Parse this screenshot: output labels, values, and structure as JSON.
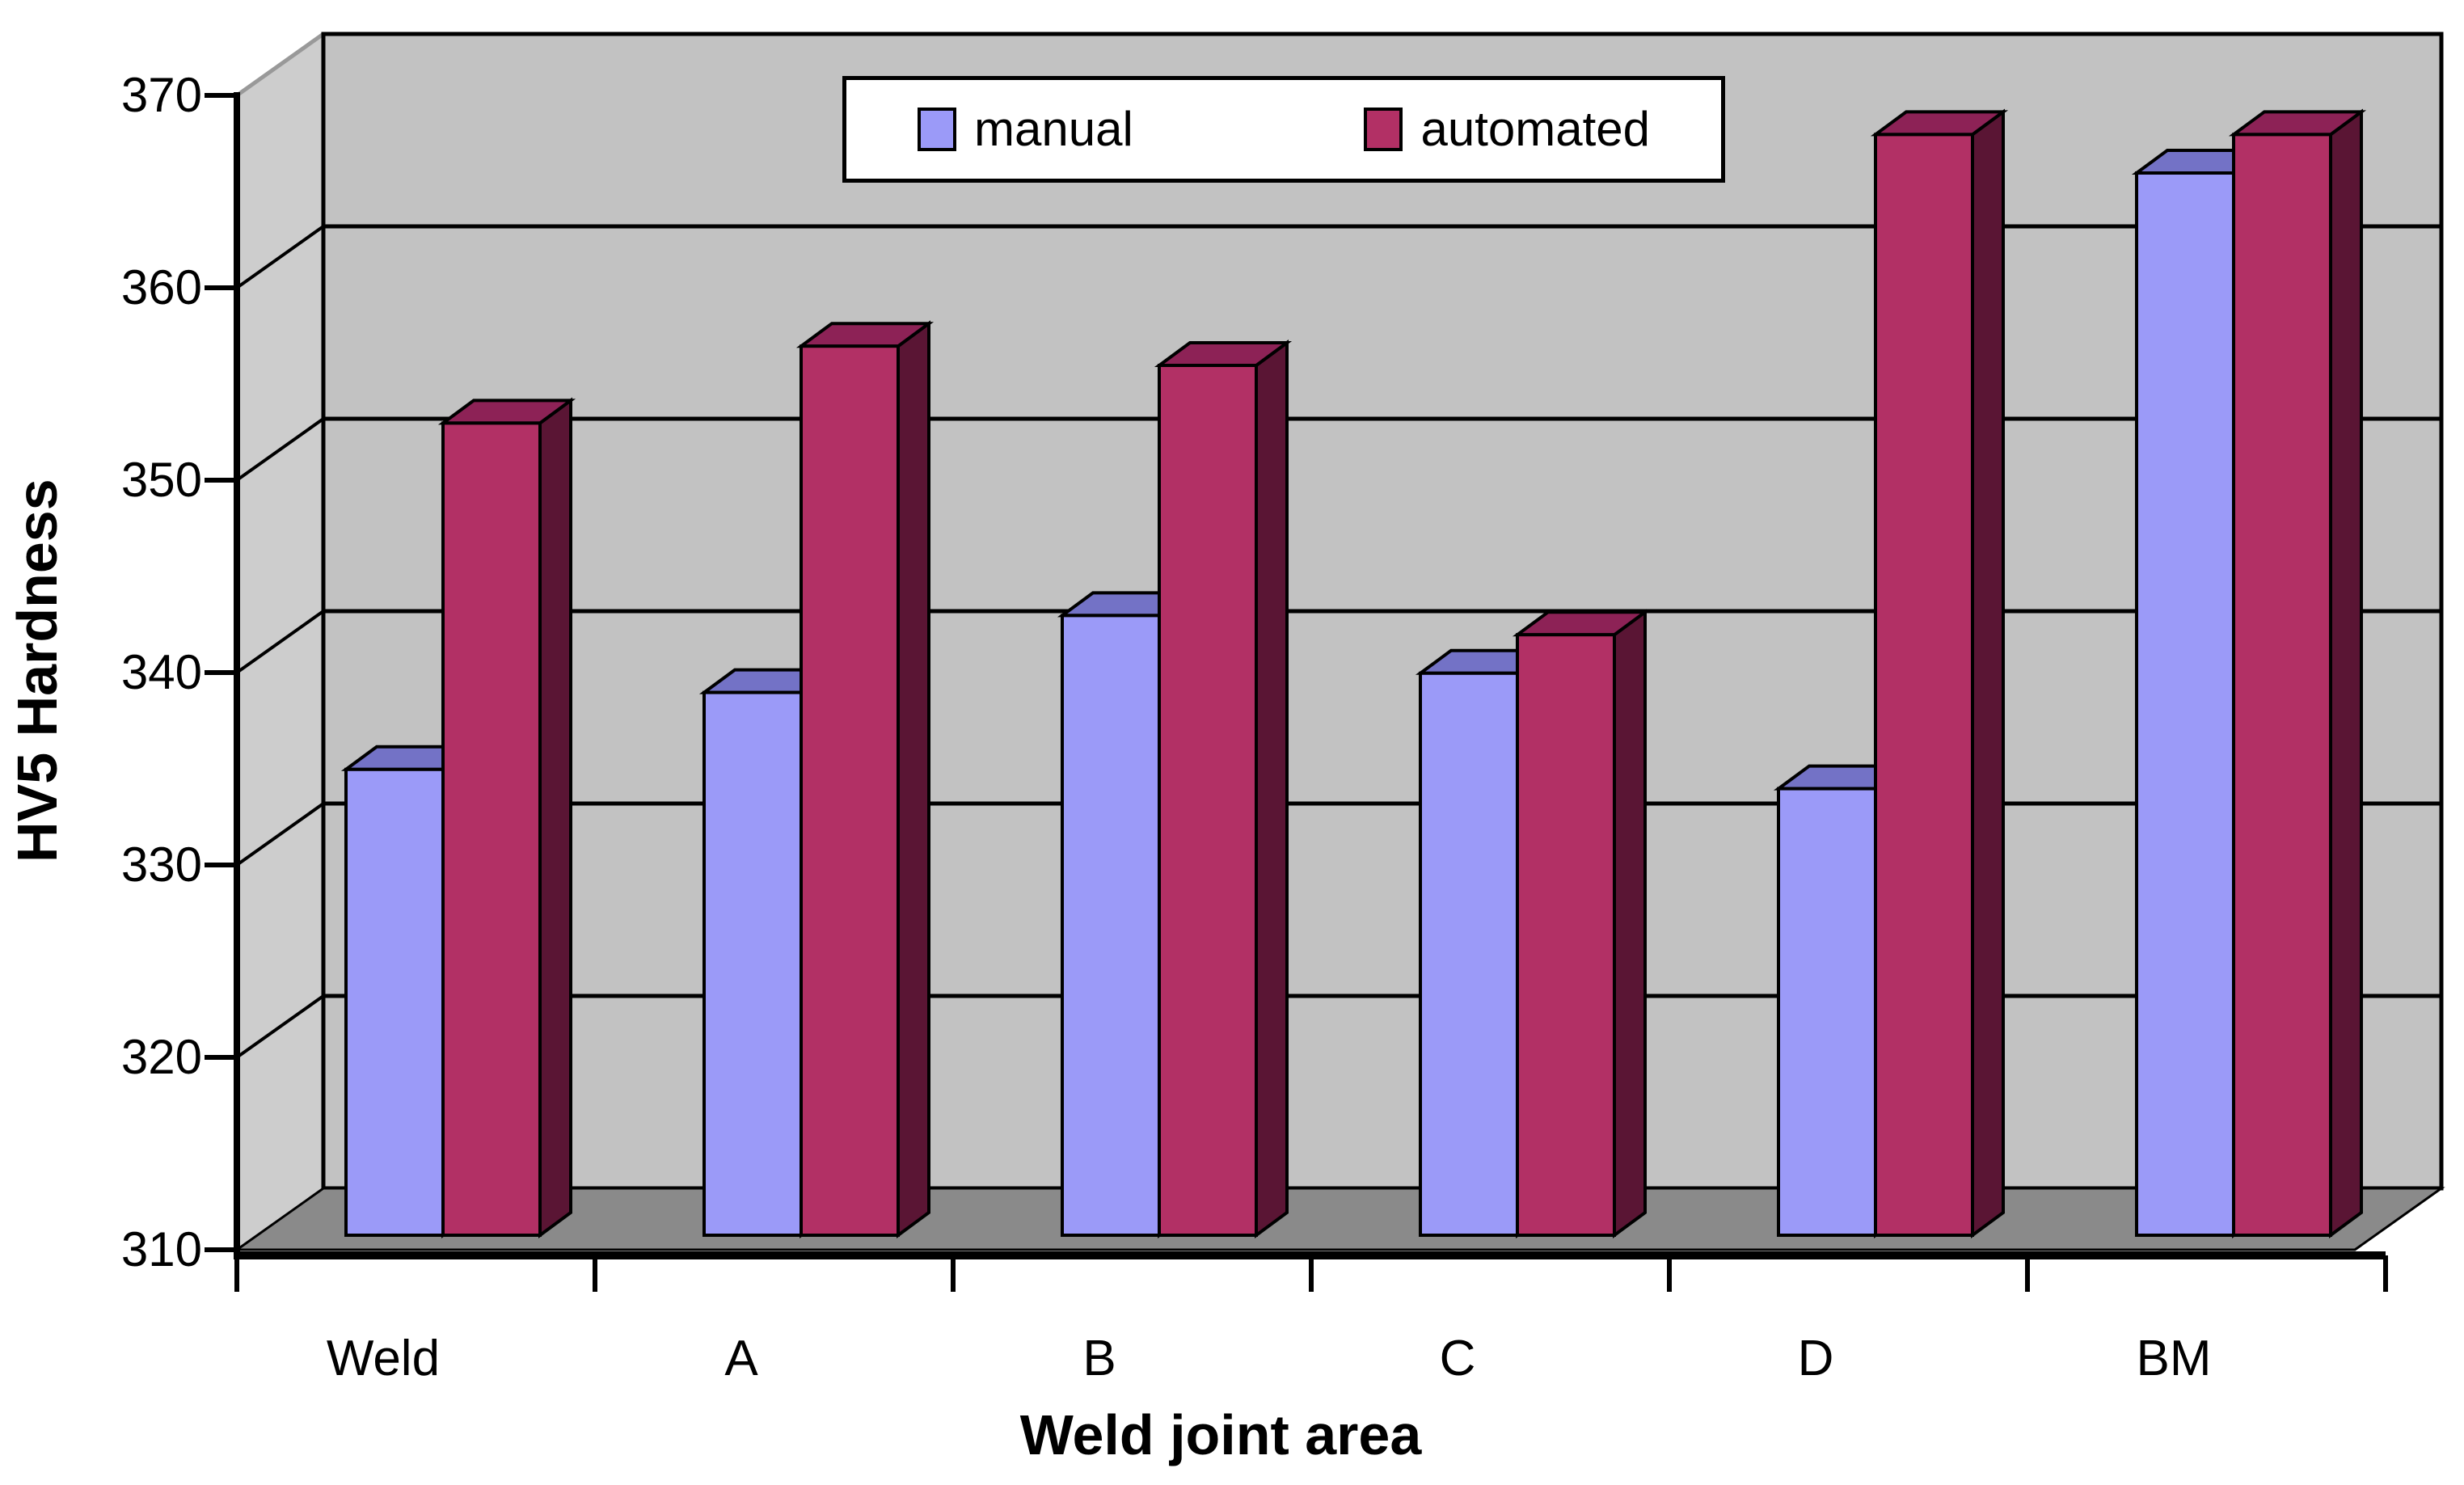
{
  "chart_data": {
    "type": "bar",
    "projection": "3d-column",
    "title": "",
    "categories": [
      "Weld",
      "A",
      "B",
      "C",
      "D",
      "BM"
    ],
    "series": [
      {
        "name": "manual",
        "values": [
          334,
          338,
          342,
          339,
          333,
          365
        ],
        "color": "#9b9af8",
        "top_color": "#7372c6",
        "side_color": "#6968b4"
      },
      {
        "name": "automated",
        "values": [
          352,
          356,
          355,
          341,
          367,
          367
        ],
        "color": "#b23065",
        "top_color": "#8d2256",
        "side_color": "#5a1534"
      }
    ],
    "xlabel": "Weld joint area",
    "ylabel": "HV5 Hardness",
    "ylim": [
      310,
      370
    ],
    "ytick_step": 10,
    "yticks": [
      "310",
      "320",
      "330",
      "340",
      "350",
      "360",
      "370"
    ],
    "grid": true,
    "legend": {
      "position": "top-center",
      "items": [
        "manual",
        "automated"
      ]
    },
    "colors": {
      "back_wall": "#c2c2c2",
      "side_wall": "#cdcdcd",
      "floor": "#8a8a8a",
      "outline": "#000000",
      "wall_edge": "#999999",
      "background": "#ffffff"
    }
  }
}
